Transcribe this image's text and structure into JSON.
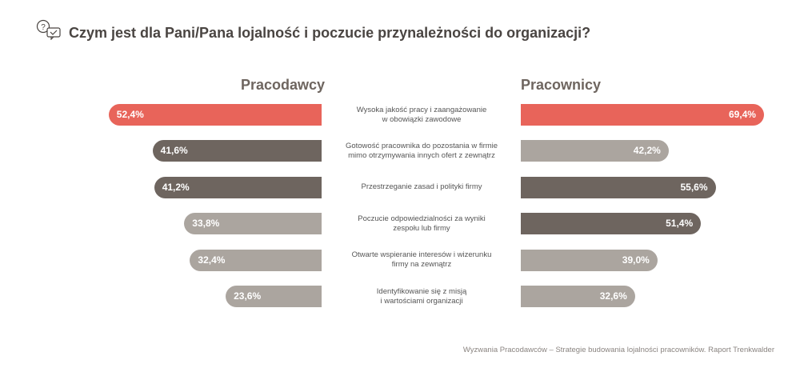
{
  "header": {
    "title": "Czym jest dla Pani/Pana lojalność i poczucie przynależności do organizacji?",
    "icon": "chat-question-check-icon"
  },
  "chart_data": {
    "type": "bar",
    "orientation": "horizontal-butterfly",
    "categories": [
      "Wysoka jakość pracy i zaangażowanie\nw obowiązki zawodowe",
      "Gotowość pracownika do pozostania w firmie\nmimo otrzymywania innych ofert z zewnątrz",
      "Przestrzeganie zasad i polityki firmy",
      "Poczucie odpowiedzialności za wyniki\nzespołu lub firmy",
      "Otwarte wspieranie interesów i wizerunku\nfirmy na zewnątrz",
      "Identyfikowanie się z misją\ni wartościami organizacji"
    ],
    "series": [
      {
        "name": "Pracodawcy",
        "side": "left",
        "values": [
          52.4,
          41.6,
          41.2,
          33.8,
          32.4,
          23.6
        ],
        "labels": [
          "52,4%",
          "41,6%",
          "41,2%",
          "33,8%",
          "32,4%",
          "23,6%"
        ],
        "colors": [
          "#e8645a",
          "#6e655f",
          "#6e655f",
          "#aba59f",
          "#aba59f",
          "#aba59f"
        ]
      },
      {
        "name": "Pracownicy",
        "side": "right",
        "values": [
          69.4,
          42.2,
          55.6,
          51.4,
          39.0,
          32.6
        ],
        "labels": [
          "69,4%",
          "42,2%",
          "55,6%",
          "51,4%",
          "39,0%",
          "32,6%"
        ],
        "colors": [
          "#e8645a",
          "#aba59f",
          "#6e655f",
          "#6e655f",
          "#aba59f",
          "#aba59f"
        ]
      }
    ],
    "unit": "%"
  },
  "source": "Wyzwania Pracodawców – Strategie budowania lojalności pracowników. Raport Trenkwalder"
}
